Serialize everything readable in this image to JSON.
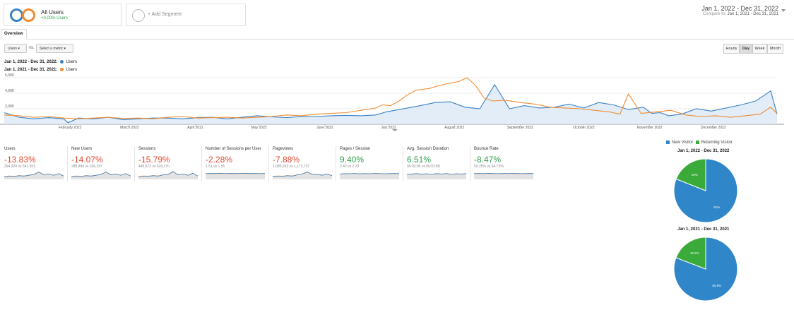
{
  "segments": {
    "all_users": {
      "title": "All Users",
      "subtitle": "+0.00% Users"
    },
    "add_segment": "+ Add Segment"
  },
  "date_range": {
    "main": "Jan 1, 2022 - Dec 31, 2022",
    "compare_prefix": "Compare to:",
    "compare": "Jan 1, 2021 - Dec 31, 2021"
  },
  "tab": "Overview",
  "controls": {
    "metric1": "Users",
    "vs": "vs.",
    "metric2": "Select a metric",
    "granularity": [
      "Hourly",
      "Day",
      "Week",
      "Month"
    ],
    "active_granularity": "Day"
  },
  "legend": [
    {
      "period": "Jan 1, 2022 - Dec 31, 2022:",
      "metric": "Users",
      "color": "#3b82c4"
    },
    {
      "period": "Jan 1, 2021 - Dec 31, 2021:",
      "metric": "Users",
      "color": "#f28b30"
    }
  ],
  "chart_data": {
    "type": "line",
    "yticks": [
      "6,000",
      "4,000",
      "2,000"
    ],
    "ylim": [
      0,
      6000
    ],
    "xlabels": [
      "February 2022",
      "March 2022",
      "April 2022",
      "May 2022",
      "June 2022",
      "July 2022",
      "August 2022",
      "September 2022",
      "October 2022",
      "November 2022",
      "December 2022"
    ],
    "series": [
      {
        "name": "Jan 1, 2022 - Dec 31, 2022: Users",
        "color": "#3b82c4",
        "x": [
          0,
          7,
          14,
          21,
          28,
          30,
          35,
          42,
          49,
          56,
          63,
          70,
          77,
          84,
          91,
          98,
          105,
          112,
          119,
          126,
          133,
          140,
          147,
          154,
          160,
          168,
          175,
          180,
          182,
          186,
          190,
          196,
          203,
          210,
          217,
          224,
          231,
          238,
          245,
          252,
          259,
          266,
          273,
          280,
          287,
          294,
          301,
          305,
          309,
          313,
          319,
          326,
          333,
          340,
          347,
          354,
          361,
          364
        ],
        "y": [
          1500,
          900,
          700,
          850,
          700,
          200,
          800,
          700,
          900,
          600,
          700,
          800,
          800,
          700,
          850,
          900,
          700,
          900,
          1100,
          950,
          850,
          1000,
          1000,
          1100,
          1150,
          1100,
          1200,
          1600,
          1700,
          1900,
          2100,
          2400,
          2800,
          2900,
          2200,
          2000,
          5100,
          2000,
          2400,
          2100,
          2200,
          2600,
          2100,
          2800,
          2500,
          1900,
          2200,
          1400,
          1500,
          1100,
          1300,
          2000,
          1700,
          2100,
          2500,
          3000,
          4300,
          1300
        ]
      },
      {
        "name": "Jan 1, 2021 - Dec 31, 2021: Users",
        "color": "#f28b30",
        "x": [
          0,
          7,
          14,
          21,
          28,
          35,
          42,
          49,
          56,
          63,
          70,
          77,
          84,
          91,
          98,
          105,
          112,
          119,
          126,
          133,
          140,
          147,
          154,
          161,
          168,
          175,
          178,
          182,
          186,
          190,
          194,
          200,
          205,
          210,
          214,
          218,
          222,
          226,
          230,
          236,
          243,
          250,
          257,
          264,
          271,
          278,
          285,
          290,
          294,
          300,
          307,
          314,
          321,
          328,
          335,
          342,
          349,
          356,
          361,
          364
        ],
        "y": [
          1200,
          1100,
          900,
          1000,
          800,
          700,
          800,
          900,
          750,
          800,
          700,
          900,
          1000,
          800,
          850,
          900,
          800,
          900,
          1000,
          1200,
          1100,
          1300,
          1400,
          1500,
          1800,
          2100,
          2500,
          2400,
          3000,
          3800,
          4400,
          4600,
          5000,
          5300,
          5500,
          6000,
          5000,
          3400,
          3000,
          3100,
          2800,
          2600,
          2200,
          2100,
          2000,
          1800,
          1600,
          1300,
          3900,
          1400,
          1600,
          1800,
          1200,
          1000,
          1100,
          900,
          1100,
          1300,
          2200,
          1400
        ]
      }
    ]
  },
  "metrics": [
    {
      "label": "Users",
      "value": "-13.83%",
      "comparison": "294,320 vs 341,551",
      "color": "#e04b32",
      "spark": [
        0.2,
        0.3,
        0.25,
        0.35,
        0.3,
        0.4,
        0.5,
        0.8,
        0.45,
        0.55,
        0.4,
        0.6,
        0.3
      ]
    },
    {
      "label": "New Users",
      "value": "-14.07%",
      "comparison": "288,899 vs 336,197",
      "color": "#e04b32",
      "spark": [
        0.2,
        0.3,
        0.25,
        0.35,
        0.3,
        0.4,
        0.5,
        0.8,
        0.45,
        0.55,
        0.4,
        0.6,
        0.3
      ]
    },
    {
      "label": "Sessions",
      "value": "-15.79%",
      "comparison": "445,672 vs 529,270",
      "color": "#e04b32",
      "spark": [
        0.2,
        0.3,
        0.28,
        0.35,
        0.3,
        0.45,
        0.5,
        0.85,
        0.45,
        0.55,
        0.4,
        0.65,
        0.3
      ]
    },
    {
      "label": "Number of Sessions per User",
      "value": "-2.28%",
      "comparison": "1.51 vs 1.55",
      "color": "#e04b32",
      "spark": [
        0.6,
        0.62,
        0.61,
        0.63,
        0.6,
        0.62,
        0.61,
        0.62,
        0.63,
        0.61,
        0.62,
        0.6,
        0.62
      ]
    },
    {
      "label": "Pageviews",
      "value": "-7.88%",
      "comparison": "1,080,293 vs 1,172,737",
      "color": "#e04b32",
      "spark": [
        0.25,
        0.3,
        0.28,
        0.35,
        0.3,
        0.45,
        0.55,
        0.8,
        0.5,
        0.5,
        0.4,
        0.55,
        0.35
      ]
    },
    {
      "label": "Pages / Session",
      "value": "9.40%",
      "comparison": "2.42 vs 2.23",
      "color": "#2e9e4a",
      "spark": [
        0.55,
        0.6,
        0.58,
        0.62,
        0.57,
        0.6,
        0.58,
        0.62,
        0.6,
        0.58,
        0.6,
        0.62,
        0.6
      ]
    },
    {
      "label": "Avg. Session Duration",
      "value": "6.51%",
      "comparison": "00:02:06 vs 00:01:58",
      "color": "#2e9e4a",
      "spark": [
        0.5,
        0.55,
        0.6,
        0.52,
        0.58,
        0.5,
        0.6,
        0.55,
        0.62,
        0.5,
        0.58,
        0.55,
        0.6
      ]
    },
    {
      "label": "Bounce Rate",
      "value": "-8.47%",
      "comparison": "59.25% vs 64.73%",
      "color": "#2e9e4a",
      "spark": [
        0.6,
        0.62,
        0.6,
        0.63,
        0.61,
        0.6,
        0.62,
        0.6,
        0.63,
        0.61,
        0.6,
        0.62,
        0.61
      ]
    }
  ],
  "pie_legend": [
    {
      "label": "New Visitor",
      "color": "#2f86c8"
    },
    {
      "label": "Returning Visitor",
      "color": "#3aaa3a"
    }
  ],
  "pies": [
    {
      "title": "Jan 1, 2022 - Dec 31, 2022",
      "slices": [
        {
          "label": "81%",
          "value": 81
        },
        {
          "label": "19%",
          "value": 19
        }
      ]
    },
    {
      "title": "Jan 1, 2021 - Dec 31, 2021",
      "slices": [
        {
          "label": "80.8%",
          "value": 80.8
        },
        {
          "label": "19.2%",
          "value": 19.2
        }
      ]
    }
  ]
}
